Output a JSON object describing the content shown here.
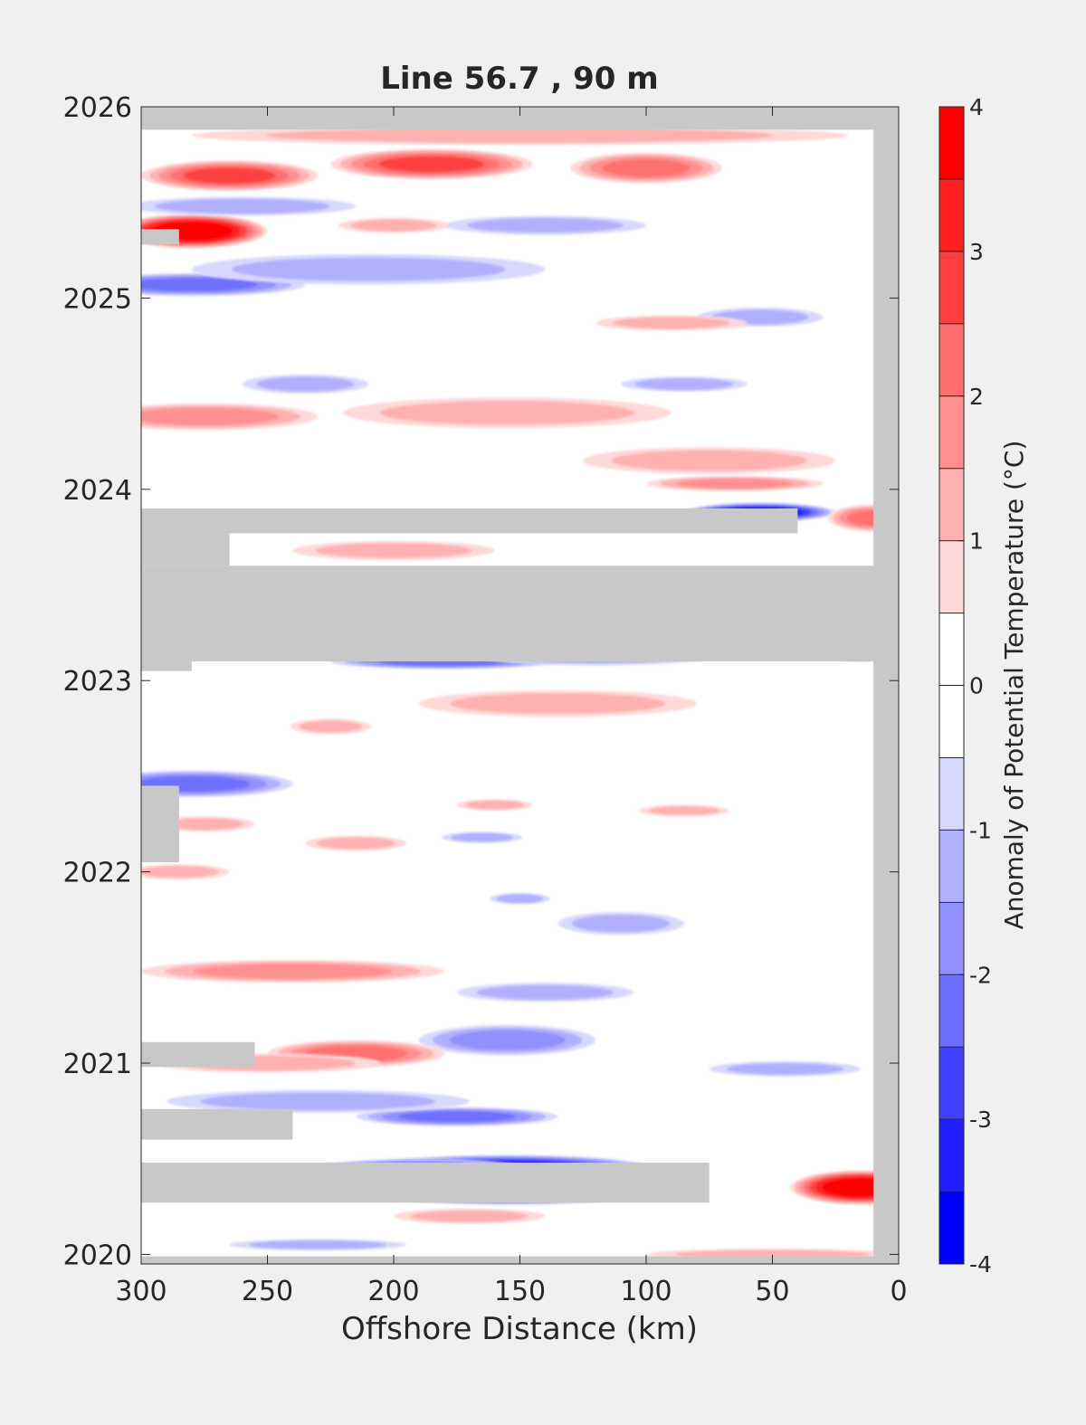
{
  "chart_data": {
    "type": "heatmap",
    "title": "Line 56.7 , 90 m",
    "xlabel": "Offshore Distance (km)",
    "ylabel": "",
    "x_reversed": true,
    "xlim": [
      0,
      300
    ],
    "ylim": [
      2019.95,
      2026
    ],
    "x_ticks": [
      300,
      250,
      200,
      150,
      100,
      50,
      0
    ],
    "y_ticks": [
      2020,
      2021,
      2022,
      2023,
      2024,
      2025,
      2026
    ],
    "colorbar": {
      "label": "Anomaly of Potential Temperature (°C)",
      "range": [
        -4,
        4
      ],
      "step": 0.5,
      "ticks": [
        4,
        3,
        2,
        1,
        0,
        -1,
        -2,
        -3,
        -4
      ],
      "colors": [
        "#0000ff",
        "#2020ff",
        "#4040ff",
        "#6f6fff",
        "#9090ff",
        "#b0b0ff",
        "#d8d8ff",
        "#ffffff",
        "#ffffff",
        "#ffd8d8",
        "#ffb0b0",
        "#ff9090",
        "#ff6f6f",
        "#ff4040",
        "#ff2020",
        "#ff0000"
      ]
    },
    "no_data_color": "#c8c8c8",
    "no_data_regions": [
      {
        "x": [
          0,
          300
        ],
        "y": [
          2025.88,
          2026
        ]
      },
      {
        "x": [
          0,
          10
        ],
        "y": [
          2019.95,
          2026
        ]
      },
      {
        "x": [
          0,
          300
        ],
        "y": [
          2019.95,
          2019.99
        ]
      },
      {
        "x": [
          0,
          300
        ],
        "y": [
          2023.1,
          2023.6
        ]
      },
      {
        "x": [
          40,
          300
        ],
        "y": [
          2023.77,
          2023.9
        ]
      },
      {
        "x": [
          265,
          300
        ],
        "y": [
          2023.6,
          2023.77
        ]
      },
      {
        "x": [
          280,
          300
        ],
        "y": [
          2023.05,
          2023.1
        ]
      },
      {
        "x": [
          75,
          300
        ],
        "y": [
          2020.27,
          2020.48
        ]
      },
      {
        "x": [
          240,
          300
        ],
        "y": [
          2020.6,
          2020.76
        ]
      },
      {
        "x": [
          255,
          300
        ],
        "y": [
          2020.98,
          2021.11
        ]
      },
      {
        "x": [
          285,
          300
        ],
        "y": [
          2022.05,
          2022.45
        ]
      },
      {
        "x": [
          285,
          300
        ],
        "y": [
          2025.28,
          2025.36
        ]
      }
    ],
    "anomaly_features": [
      {
        "x": 280,
        "y": 2025.35,
        "peak": 4.0,
        "rx": 30,
        "ry": 0.09
      },
      {
        "x": 265,
        "y": 2025.64,
        "peak": 2.5,
        "rx": 35,
        "ry": 0.08
      },
      {
        "x": 185,
        "y": 2025.7,
        "peak": 2.5,
        "rx": 40,
        "ry": 0.08
      },
      {
        "x": 100,
        "y": 2025.68,
        "peak": 2.0,
        "rx": 30,
        "ry": 0.08
      },
      {
        "x": 150,
        "y": 2025.85,
        "peak": 1.0,
        "rx": 130,
        "ry": 0.05
      },
      {
        "x": 260,
        "y": 2025.48,
        "peak": -1.0,
        "rx": 45,
        "ry": 0.05
      },
      {
        "x": 280,
        "y": 2025.07,
        "peak": -2.0,
        "rx": 45,
        "ry": 0.06
      },
      {
        "x": 210,
        "y": 2025.15,
        "peak": -1.0,
        "rx": 70,
        "ry": 0.08
      },
      {
        "x": 140,
        "y": 2025.38,
        "peak": -1.0,
        "rx": 40,
        "ry": 0.05
      },
      {
        "x": 200,
        "y": 2025.38,
        "peak": 1.0,
        "rx": 22,
        "ry": 0.04
      },
      {
        "x": 55,
        "y": 2024.9,
        "peak": -1.0,
        "rx": 25,
        "ry": 0.05
      },
      {
        "x": 90,
        "y": 2024.87,
        "peak": 1.0,
        "rx": 30,
        "ry": 0.04
      },
      {
        "x": 275,
        "y": 2024.38,
        "peak": 1.5,
        "rx": 45,
        "ry": 0.07
      },
      {
        "x": 155,
        "y": 2024.4,
        "peak": 1.0,
        "rx": 65,
        "ry": 0.08
      },
      {
        "x": 75,
        "y": 2024.15,
        "peak": 1.0,
        "rx": 50,
        "ry": 0.07
      },
      {
        "x": 235,
        "y": 2024.55,
        "peak": -1.0,
        "rx": 25,
        "ry": 0.05
      },
      {
        "x": 85,
        "y": 2024.55,
        "peak": -1.0,
        "rx": 25,
        "ry": 0.04
      },
      {
        "x": 55,
        "y": 2023.88,
        "peak": -3.5,
        "rx": 30,
        "ry": 0.05
      },
      {
        "x": 10,
        "y": 2023.85,
        "peak": 2.0,
        "rx": 18,
        "ry": 0.07
      },
      {
        "x": 65,
        "y": 2024.03,
        "peak": 1.5,
        "rx": 35,
        "ry": 0.04
      },
      {
        "x": 200,
        "y": 2023.68,
        "peak": 1.0,
        "rx": 40,
        "ry": 0.05
      },
      {
        "x": 180,
        "y": 2023.1,
        "peak": -2.0,
        "rx": 45,
        "ry": 0.04
      },
      {
        "x": 120,
        "y": 2023.12,
        "peak": -1.0,
        "rx": 45,
        "ry": 0.04
      },
      {
        "x": 15,
        "y": 2023.13,
        "peak": -2.0,
        "rx": 10,
        "ry": 0.03
      },
      {
        "x": 135,
        "y": 2022.88,
        "peak": 1.0,
        "rx": 55,
        "ry": 0.07
      },
      {
        "x": 225,
        "y": 2022.76,
        "peak": 1.0,
        "rx": 16,
        "ry": 0.04
      },
      {
        "x": 280,
        "y": 2022.46,
        "peak": -2.0,
        "rx": 40,
        "ry": 0.07
      },
      {
        "x": 275,
        "y": 2022.25,
        "peak": 1.0,
        "rx": 20,
        "ry": 0.04
      },
      {
        "x": 215,
        "y": 2022.15,
        "peak": 1.0,
        "rx": 20,
        "ry": 0.04
      },
      {
        "x": 160,
        "y": 2022.35,
        "peak": 1.0,
        "rx": 15,
        "ry": 0.03
      },
      {
        "x": 85,
        "y": 2022.32,
        "peak": 1.0,
        "rx": 18,
        "ry": 0.03
      },
      {
        "x": 165,
        "y": 2022.18,
        "peak": -1.0,
        "rx": 16,
        "ry": 0.03
      },
      {
        "x": 285,
        "y": 2022.0,
        "peak": 1.0,
        "rx": 20,
        "ry": 0.04
      },
      {
        "x": 110,
        "y": 2021.73,
        "peak": -1.0,
        "rx": 25,
        "ry": 0.06
      },
      {
        "x": 150,
        "y": 2021.86,
        "peak": -1.0,
        "rx": 12,
        "ry": 0.03
      },
      {
        "x": 240,
        "y": 2021.48,
        "peak": 1.5,
        "rx": 60,
        "ry": 0.06
      },
      {
        "x": 140,
        "y": 2021.37,
        "peak": -1.0,
        "rx": 35,
        "ry": 0.05
      },
      {
        "x": 155,
        "y": 2021.12,
        "peak": -1.5,
        "rx": 35,
        "ry": 0.08
      },
      {
        "x": 215,
        "y": 2021.05,
        "peak": 2.0,
        "rx": 35,
        "ry": 0.07
      },
      {
        "x": 250,
        "y": 2021.0,
        "peak": 1.0,
        "rx": 45,
        "ry": 0.05
      },
      {
        "x": 45,
        "y": 2020.97,
        "peak": -1.0,
        "rx": 30,
        "ry": 0.04
      },
      {
        "x": 175,
        "y": 2020.72,
        "peak": -2.0,
        "rx": 40,
        "ry": 0.05
      },
      {
        "x": 230,
        "y": 2020.8,
        "peak": -1.0,
        "rx": 60,
        "ry": 0.06
      },
      {
        "x": 15,
        "y": 2020.35,
        "peak": 4.0,
        "rx": 28,
        "ry": 0.09
      },
      {
        "x": 155,
        "y": 2020.46,
        "peak": -3.0,
        "rx": 55,
        "ry": 0.06
      },
      {
        "x": 190,
        "y": 2020.44,
        "peak": -2.5,
        "rx": 45,
        "ry": 0.06
      },
      {
        "x": 155,
        "y": 2020.3,
        "peak": -2.5,
        "rx": 45,
        "ry": 0.04
      },
      {
        "x": 170,
        "y": 2020.2,
        "peak": 1.0,
        "rx": 30,
        "ry": 0.04
      },
      {
        "x": 230,
        "y": 2020.05,
        "peak": -1.0,
        "rx": 35,
        "ry": 0.03
      },
      {
        "x": 50,
        "y": 2020.0,
        "peak": 1.0,
        "rx": 50,
        "ry": 0.03
      }
    ]
  }
}
